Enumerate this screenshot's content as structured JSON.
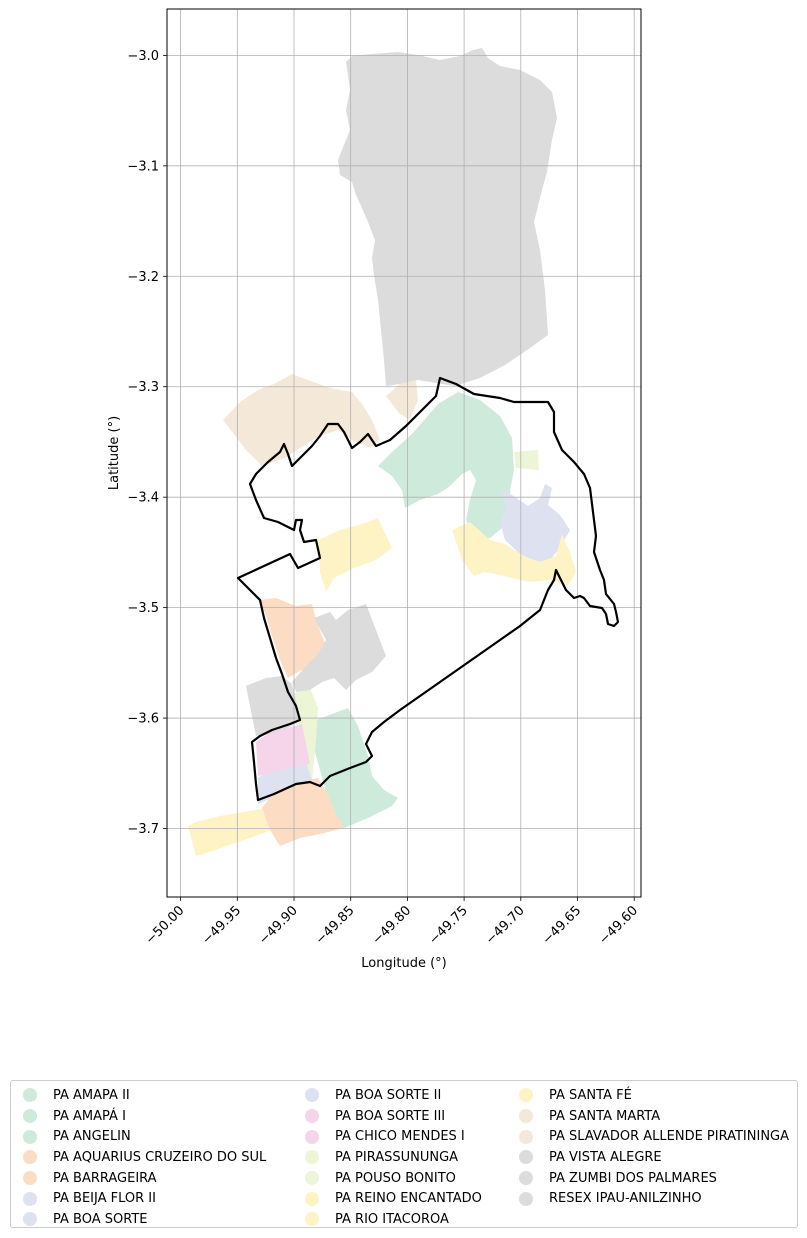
{
  "axes": {
    "xlabel": "Longitude (°)",
    "ylabel": "Latitude (°)",
    "xticks": [
      "−50.00",
      "−49.95",
      "−49.90",
      "−49.85",
      "−49.80",
      "−49.75",
      "−49.70",
      "−49.65",
      "−49.60"
    ],
    "yticks": [
      "−3.0",
      "−3.1",
      "−3.2",
      "−3.3",
      "−3.4",
      "−3.5",
      "−3.6",
      "−3.7"
    ],
    "xlim": [
      -50.012,
      -49.594
    ],
    "ylim": [
      -3.762,
      -2.958
    ],
    "grid": true
  },
  "colors": {
    "green": "#cdeadb",
    "peach": "#fcdcc3",
    "lavender": "#dde1f0",
    "pink": "#f6d5ea",
    "lime": "#ecf5d6",
    "yellow": "#fef3c5",
    "beige": "#f4e8d8",
    "gray": "#dcdcdc",
    "boundary": "#000000"
  },
  "legend": {
    "placement": "bottom",
    "items": [
      {
        "label": "PA AMAPA II",
        "color": "#cdeadb"
      },
      {
        "label": "PA AMAPÁ I",
        "color": "#cdeadb"
      },
      {
        "label": "PA ANGELIN",
        "color": "#cdeadb"
      },
      {
        "label": "PA AQUARIUS CRUZEIRO DO SUL",
        "color": "#fcdcc3"
      },
      {
        "label": "PA BARRAGEIRA",
        "color": "#fcdcc3"
      },
      {
        "label": "PA BEIJA FLOR II",
        "color": "#dde1f0"
      },
      {
        "label": "PA BOA SORTE",
        "color": "#dde1f0"
      },
      {
        "label": "PA BOA SORTE II",
        "color": "#dde1f0"
      },
      {
        "label": "PA BOA SORTE III",
        "color": "#f6d5ea"
      },
      {
        "label": "PA CHICO MENDES I",
        "color": "#f6d5ea"
      },
      {
        "label": "PA PIRASSUNUNGA",
        "color": "#ecf5d6"
      },
      {
        "label": "PA POUSO BONITO",
        "color": "#ecf5d6"
      },
      {
        "label": "PA REINO ENCANTADO",
        "color": "#fef3c5"
      },
      {
        "label": "PA RIO ITACOROA",
        "color": "#fef3c5"
      },
      {
        "label": "PA SANTA FÉ",
        "color": "#fef3c5"
      },
      {
        "label": "PA SANTA MARTA",
        "color": "#f4e8d8"
      },
      {
        "label": "PA SLAVADOR ALLENDE PIRATININGA",
        "color": "#f4e8d8"
      },
      {
        "label": "PA VISTA ALEGRE",
        "color": "#dcdcdc"
      },
      {
        "label": "PA ZUMBI DOS PALMARES",
        "color": "#dcdcdc"
      },
      {
        "label": "RESEX IPAU-ANILZINHO",
        "color": "#dcdcdc"
      }
    ]
  }
}
